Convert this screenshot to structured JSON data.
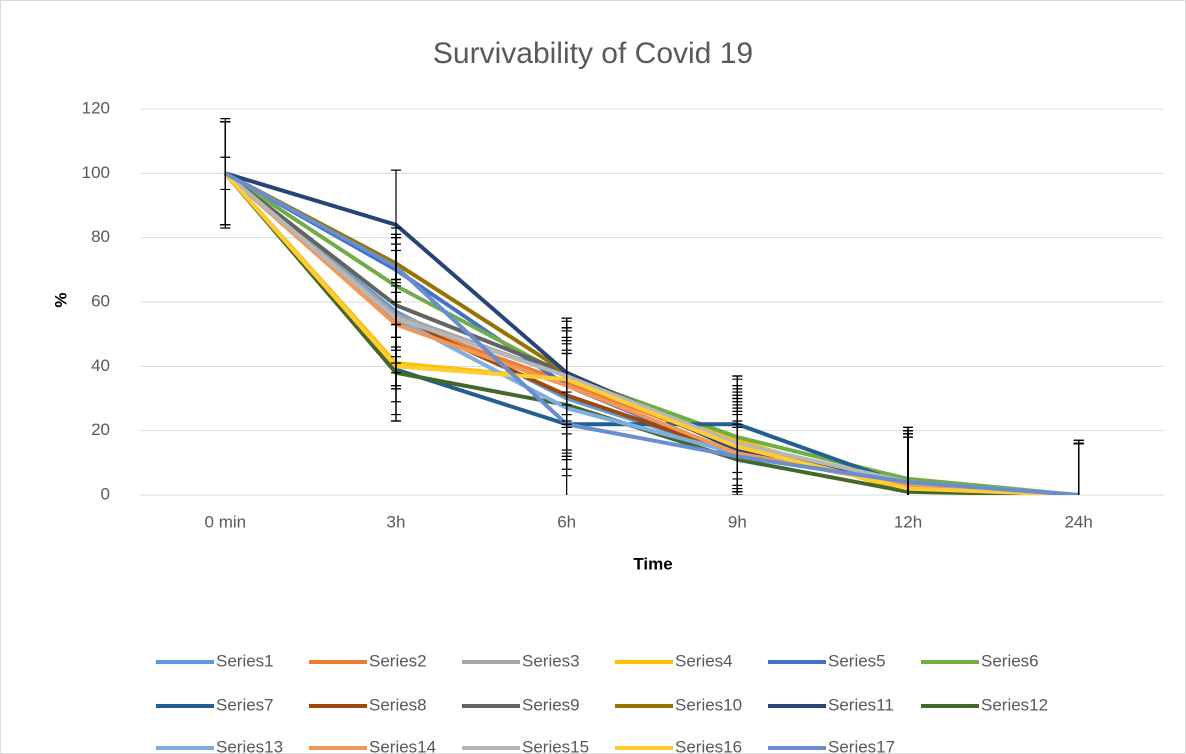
{
  "chart_data": {
    "type": "line",
    "title": "Survivability of Covid 19",
    "x_label": "Time",
    "y_label": "%",
    "categories": [
      "0 min",
      "3h",
      "6h",
      "9h",
      "12h",
      "24h"
    ],
    "ylim": [
      0,
      120
    ],
    "yticks": [
      0,
      20,
      40,
      60,
      80,
      100,
      120
    ],
    "grid": true,
    "legend": "bottom",
    "error_color": "#000000",
    "series": [
      {
        "name": "Series1",
        "color": "#5b9bd5",
        "values": [
          100,
          57,
          30,
          13,
          3,
          0
        ],
        "errors": [
          16,
          24,
          22,
          12,
          16,
          16
        ]
      },
      {
        "name": "Series2",
        "color": "#ed7d31",
        "values": [
          100,
          54,
          35,
          15,
          3,
          0
        ],
        "errors": [
          16,
          13,
          10,
          15,
          15,
          16
        ]
      },
      {
        "name": "Series3",
        "color": "#a5a5a5",
        "values": [
          100,
          56,
          37,
          15,
          3,
          0
        ],
        "errors": [
          16,
          22,
          15,
          17,
          17,
          16
        ]
      },
      {
        "name": "Series4",
        "color": "#ffc000",
        "values": [
          100,
          41,
          36,
          17,
          1,
          0
        ],
        "errors": [
          16,
          8,
          13,
          12,
          19,
          16
        ]
      },
      {
        "name": "Series5",
        "color": "#4472c4",
        "values": [
          100,
          70,
          34,
          12,
          4,
          0
        ],
        "errors": [
          16,
          10,
          21,
          11,
          14,
          16
        ]
      },
      {
        "name": "Series6",
        "color": "#70ad47",
        "values": [
          100,
          65,
          37,
          18,
          5,
          0
        ],
        "errors": [
          5,
          16,
          15,
          15,
          16,
          16
        ]
      },
      {
        "name": "Series7",
        "color": "#255e91",
        "values": [
          100,
          39,
          22,
          22,
          3,
          0
        ],
        "errors": [
          16,
          14,
          10,
          15,
          18,
          17
        ]
      },
      {
        "name": "Series8",
        "color": "#9e480e",
        "values": [
          100,
          55,
          31,
          13,
          3,
          0
        ],
        "errors": [
          16,
          12,
          20,
          14,
          17,
          16
        ]
      },
      {
        "name": "Series9",
        "color": "#636363",
        "values": [
          100,
          59,
          38,
          15,
          3,
          0
        ],
        "errors": [
          16,
          21,
          17,
          22,
          17,
          16
        ]
      },
      {
        "name": "Series10",
        "color": "#997300",
        "values": [
          100,
          72,
          38,
          14,
          3,
          0
        ],
        "errors": [
          16,
          9,
          13,
          16,
          16,
          16
        ]
      },
      {
        "name": "Series11",
        "color": "#264478",
        "values": [
          100,
          84,
          38,
          14,
          3,
          0
        ],
        "errors": [
          16,
          17,
          17,
          12,
          15,
          17
        ]
      },
      {
        "name": "Series12",
        "color": "#43682b",
        "values": [
          100,
          38,
          28,
          11,
          1,
          0
        ],
        "errors": [
          16,
          15,
          16,
          10,
          18,
          16
        ]
      },
      {
        "name": "Series13",
        "color": "#7cafdd",
        "values": [
          100,
          55,
          27,
          13,
          3,
          0
        ],
        "errors": [
          16,
          26,
          21,
          18,
          16,
          16
        ]
      },
      {
        "name": "Series14",
        "color": "#f1975a",
        "values": [
          100,
          53,
          34,
          13,
          3,
          0
        ],
        "errors": [
          16,
          30,
          20,
          15,
          16,
          16
        ]
      },
      {
        "name": "Series15",
        "color": "#b7b7b7",
        "values": [
          100,
          55,
          37,
          16,
          4,
          0
        ],
        "errors": [
          16,
          10,
          18,
          20,
          17,
          17
        ]
      },
      {
        "name": "Series16",
        "color": "#ffcd33",
        "values": [
          100,
          40,
          36,
          15,
          2,
          0
        ],
        "errors": [
          16,
          6,
          8,
          19,
          19,
          16
        ]
      },
      {
        "name": "Series17",
        "color": "#698ed0",
        "values": [
          100,
          71,
          22,
          12,
          4,
          0
        ],
        "errors": [
          17,
          5,
          25,
          10,
          16,
          16
        ]
      }
    ]
  }
}
